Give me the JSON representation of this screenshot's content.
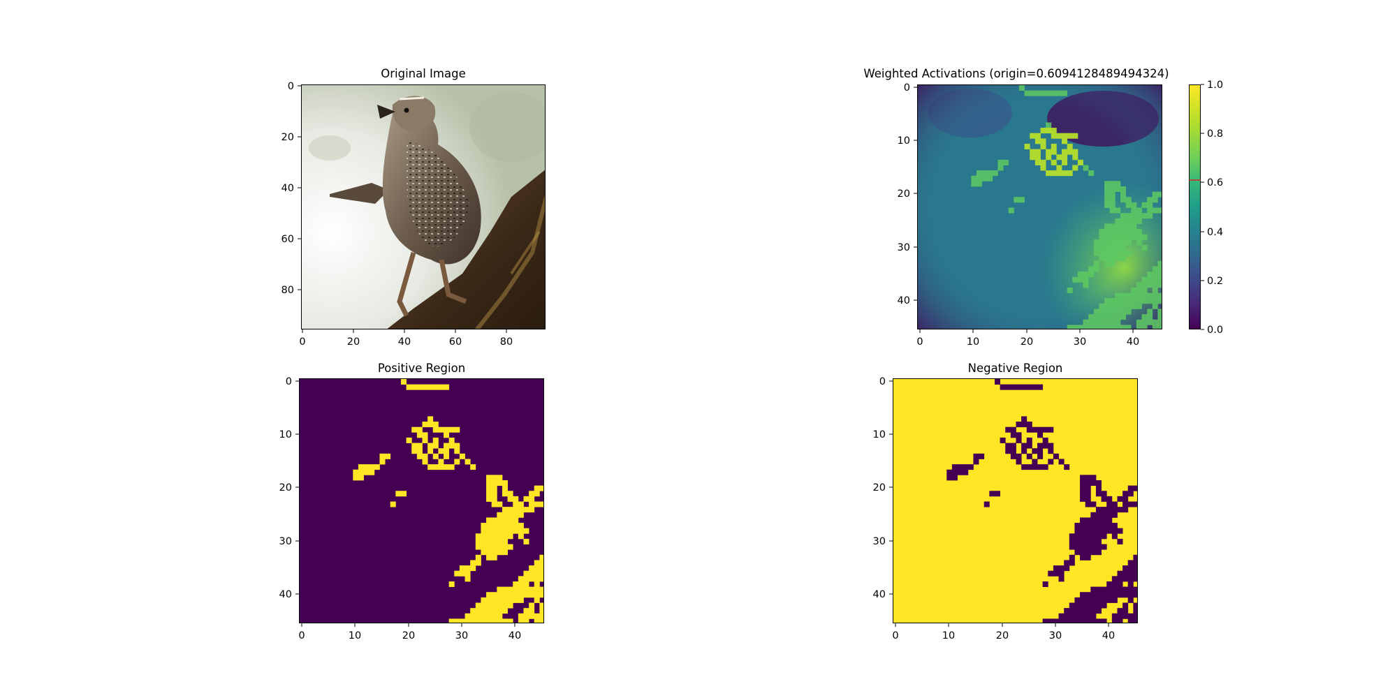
{
  "figure": {
    "panels": [
      {
        "id": "original",
        "title": "Original Image"
      },
      {
        "id": "weighted",
        "title": "Weighted Activations (origin=0.6094128489494324)"
      },
      {
        "id": "positive",
        "title": "Positive Region"
      },
      {
        "id": "negative",
        "title": "Negative Region"
      }
    ]
  },
  "colors": {
    "viridis_low": "#440154",
    "viridis_high": "#fde725",
    "origin_marker": "#d62728"
  },
  "chart_data": [
    {
      "type": "image",
      "title": "Original Image",
      "content": "photo of a brown speckled bird perched on a branch",
      "xticks": [
        0,
        20,
        40,
        60,
        80
      ],
      "yticks": [
        0,
        20,
        40,
        60,
        80
      ],
      "xlim": [
        -0.5,
        95.5
      ],
      "ylim": [
        95.5,
        -0.5
      ]
    },
    {
      "type": "heatmap",
      "title": "Weighted Activations (origin=0.6094128489494324)",
      "colormap": "viridis",
      "grid_size": [
        46,
        46
      ],
      "xticks": [
        0,
        10,
        20,
        30,
        40
      ],
      "yticks": [
        0,
        10,
        20,
        30,
        40
      ],
      "xlim": [
        -0.5,
        45.5
      ],
      "ylim": [
        45.5,
        -0.5
      ],
      "colorbar": {
        "range": [
          0,
          1
        ],
        "ticks": [
          "0.0",
          "0.2",
          "0.4",
          "0.6",
          "0.8",
          "1.0"
        ],
        "marker": 0.6094128489494324
      }
    },
    {
      "type": "heatmap",
      "title": "Positive Region",
      "colormap": "viridis",
      "binary": true,
      "grid_size": [
        46,
        46
      ],
      "xticks": [
        0,
        10,
        20,
        30,
        40
      ],
      "yticks": [
        0,
        10,
        20,
        30,
        40
      ],
      "xlim": [
        -0.5,
        45.5
      ],
      "ylim": [
        45.5,
        -0.5
      ],
      "yellow_cells": [
        [
          0,
          19
        ],
        [
          1,
          20
        ],
        [
          1,
          21
        ],
        [
          1,
          22
        ],
        [
          1,
          23
        ],
        [
          1,
          24
        ],
        [
          1,
          25
        ],
        [
          1,
          26
        ],
        [
          1,
          27
        ],
        [
          7,
          24
        ],
        [
          8,
          23
        ],
        [
          8,
          24
        ],
        [
          8,
          25
        ],
        [
          9,
          21
        ],
        [
          9,
          22
        ],
        [
          9,
          25
        ],
        [
          9,
          26
        ],
        [
          9,
          27
        ],
        [
          9,
          28
        ],
        [
          9,
          29
        ],
        [
          10,
          22
        ],
        [
          10,
          23
        ],
        [
          10,
          27
        ],
        [
          11,
          20
        ],
        [
          11,
          23
        ],
        [
          11,
          25
        ],
        [
          11,
          28
        ],
        [
          12,
          21
        ],
        [
          12,
          22
        ],
        [
          12,
          24
        ],
        [
          12,
          25
        ],
        [
          12,
          27
        ],
        [
          12,
          28
        ],
        [
          12,
          29
        ],
        [
          13,
          21
        ],
        [
          13,
          22
        ],
        [
          13,
          24
        ],
        [
          13,
          26
        ],
        [
          13,
          27
        ],
        [
          13,
          29
        ],
        [
          14,
          15
        ],
        [
          14,
          16
        ],
        [
          14,
          22
        ],
        [
          14,
          23
        ],
        [
          14,
          25
        ],
        [
          14,
          27
        ],
        [
          14,
          30
        ],
        [
          15,
          15
        ],
        [
          15,
          23
        ],
        [
          15,
          26
        ],
        [
          15,
          29
        ],
        [
          15,
          31
        ],
        [
          16,
          11
        ],
        [
          16,
          12
        ],
        [
          16,
          13
        ],
        [
          16,
          14
        ],
        [
          16,
          24
        ],
        [
          16,
          25
        ],
        [
          16,
          26
        ],
        [
          16,
          27
        ],
        [
          16,
          28
        ],
        [
          16,
          32
        ],
        [
          17,
          10
        ],
        [
          17,
          11
        ],
        [
          17,
          12
        ],
        [
          17,
          13
        ],
        [
          18,
          10
        ],
        [
          18,
          11
        ],
        [
          18,
          35
        ],
        [
          18,
          36
        ],
        [
          18,
          37
        ],
        [
          19,
          35
        ],
        [
          19,
          36
        ],
        [
          19,
          37
        ],
        [
          19,
          38
        ],
        [
          20,
          35
        ],
        [
          20,
          36
        ],
        [
          20,
          38
        ],
        [
          20,
          44
        ],
        [
          20,
          45
        ],
        [
          21,
          18
        ],
        [
          21,
          19
        ],
        [
          21,
          35
        ],
        [
          21,
          36
        ],
        [
          21,
          38
        ],
        [
          21,
          39
        ],
        [
          21,
          43
        ],
        [
          21,
          44
        ],
        [
          22,
          35
        ],
        [
          22,
          36
        ],
        [
          22,
          39
        ],
        [
          22,
          40
        ],
        [
          22,
          42
        ],
        [
          22,
          43
        ],
        [
          23,
          17
        ],
        [
          23,
          36
        ],
        [
          23,
          37
        ],
        [
          23,
          40
        ],
        [
          23,
          41
        ],
        [
          23,
          43
        ],
        [
          23,
          44
        ],
        [
          23,
          45
        ],
        [
          24,
          38
        ],
        [
          24,
          39
        ],
        [
          24,
          40
        ],
        [
          24,
          41
        ],
        [
          24,
          42
        ],
        [
          24,
          43
        ],
        [
          25,
          37
        ],
        [
          25,
          38
        ],
        [
          25,
          39
        ],
        [
          25,
          40
        ],
        [
          25,
          41
        ],
        [
          26,
          35
        ],
        [
          26,
          36
        ],
        [
          26,
          37
        ],
        [
          26,
          38
        ],
        [
          26,
          39
        ],
        [
          26,
          40
        ],
        [
          27,
          34
        ],
        [
          27,
          35
        ],
        [
          27,
          36
        ],
        [
          27,
          37
        ],
        [
          27,
          38
        ],
        [
          27,
          39
        ],
        [
          27,
          40
        ],
        [
          27,
          41
        ],
        [
          28,
          34
        ],
        [
          28,
          35
        ],
        [
          28,
          36
        ],
        [
          28,
          37
        ],
        [
          28,
          38
        ],
        [
          28,
          39
        ],
        [
          28,
          40
        ],
        [
          28,
          41
        ],
        [
          28,
          42
        ],
        [
          29,
          33
        ],
        [
          29,
          34
        ],
        [
          29,
          35
        ],
        [
          29,
          36
        ],
        [
          29,
          37
        ],
        [
          29,
          38
        ],
        [
          29,
          39
        ],
        [
          29,
          41
        ],
        [
          30,
          33
        ],
        [
          30,
          34
        ],
        [
          30,
          35
        ],
        [
          30,
          36
        ],
        [
          30,
          37
        ],
        [
          30,
          38
        ],
        [
          30,
          42
        ],
        [
          31,
          33
        ],
        [
          31,
          34
        ],
        [
          31,
          35
        ],
        [
          31,
          36
        ],
        [
          31,
          37
        ],
        [
          31,
          38
        ],
        [
          31,
          39
        ],
        [
          32,
          34
        ],
        [
          32,
          35
        ],
        [
          32,
          36
        ],
        [
          32,
          37
        ],
        [
          32,
          38
        ],
        [
          33,
          33
        ],
        [
          33,
          35
        ],
        [
          33,
          36
        ],
        [
          33,
          45
        ],
        [
          34,
          32
        ],
        [
          34,
          33
        ],
        [
          34,
          44
        ],
        [
          34,
          45
        ],
        [
          35,
          30
        ],
        [
          35,
          31
        ],
        [
          35,
          32
        ],
        [
          35,
          43
        ],
        [
          35,
          44
        ],
        [
          35,
          45
        ],
        [
          36,
          29
        ],
        [
          36,
          30
        ],
        [
          36,
          31
        ],
        [
          36,
          42
        ],
        [
          36,
          43
        ],
        [
          36,
          44
        ],
        [
          36,
          45
        ],
        [
          37,
          31
        ],
        [
          37,
          41
        ],
        [
          37,
          42
        ],
        [
          37,
          43
        ],
        [
          37,
          44
        ],
        [
          37,
          45
        ],
        [
          38,
          28
        ],
        [
          38,
          40
        ],
        [
          38,
          41
        ],
        [
          38,
          42
        ],
        [
          38,
          44
        ],
        [
          39,
          37
        ],
        [
          39,
          38
        ],
        [
          39,
          39
        ],
        [
          39,
          40
        ],
        [
          39,
          41
        ],
        [
          39,
          42
        ],
        [
          39,
          43
        ],
        [
          39,
          44
        ],
        [
          39,
          45
        ],
        [
          40,
          35
        ],
        [
          40,
          36
        ],
        [
          40,
          37
        ],
        [
          40,
          38
        ],
        [
          40,
          39
        ],
        [
          40,
          40
        ],
        [
          40,
          41
        ],
        [
          40,
          42
        ],
        [
          40,
          43
        ],
        [
          40,
          44
        ],
        [
          40,
          45
        ],
        [
          41,
          34
        ],
        [
          41,
          35
        ],
        [
          41,
          36
        ],
        [
          41,
          37
        ],
        [
          41,
          38
        ],
        [
          41,
          39
        ],
        [
          41,
          40
        ],
        [
          41,
          41
        ],
        [
          41,
          44
        ],
        [
          42,
          33
        ],
        [
          42,
          34
        ],
        [
          42,
          35
        ],
        [
          42,
          36
        ],
        [
          42,
          37
        ],
        [
          42,
          38
        ],
        [
          42,
          39
        ],
        [
          42,
          43
        ],
        [
          42,
          45
        ],
        [
          43,
          32
        ],
        [
          43,
          33
        ],
        [
          43,
          34
        ],
        [
          43,
          35
        ],
        [
          43,
          36
        ],
        [
          43,
          37
        ],
        [
          43,
          38
        ],
        [
          43,
          42
        ],
        [
          43,
          43
        ],
        [
          43,
          45
        ],
        [
          44,
          31
        ],
        [
          44,
          32
        ],
        [
          44,
          33
        ],
        [
          44,
          34
        ],
        [
          44,
          35
        ],
        [
          44,
          36
        ],
        [
          44,
          37
        ],
        [
          44,
          41
        ],
        [
          44,
          42
        ],
        [
          44,
          43
        ],
        [
          44,
          44
        ],
        [
          44,
          45
        ],
        [
          45,
          28
        ],
        [
          45,
          29
        ],
        [
          45,
          30
        ],
        [
          45,
          31
        ],
        [
          45,
          32
        ],
        [
          45,
          33
        ],
        [
          45,
          34
        ],
        [
          45,
          35
        ],
        [
          45,
          36
        ],
        [
          45,
          37
        ],
        [
          45,
          38
        ],
        [
          45,
          39
        ],
        [
          45,
          41
        ],
        [
          45,
          42
        ],
        [
          45,
          44
        ],
        [
          45,
          45
        ]
      ]
    },
    {
      "type": "heatmap",
      "title": "Negative Region",
      "colormap": "viridis",
      "binary": true,
      "inverse_of": "Positive Region",
      "grid_size": [
        46,
        46
      ],
      "xticks": [
        0,
        10,
        20,
        30,
        40
      ],
      "yticks": [
        0,
        10,
        20,
        30,
        40
      ],
      "xlim": [
        -0.5,
        45.5
      ],
      "ylim": [
        45.5,
        -0.5
      ]
    }
  ]
}
